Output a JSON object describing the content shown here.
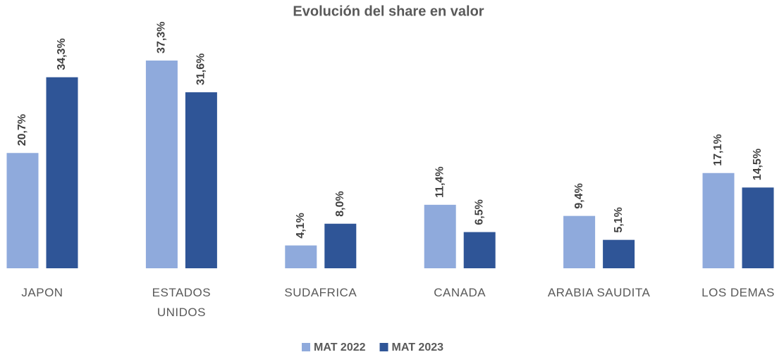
{
  "chart_data": {
    "type": "bar",
    "title": "Evolución del share en valor",
    "categories": [
      "JAPON",
      "ESTADOS\nUNIDOS",
      "SUDAFRICA",
      "CANADA",
      "ARABIA SAUDITA",
      "LOS DEMAS"
    ],
    "series": [
      {
        "name": "MAT 2022",
        "color": "#8faadc",
        "values": [
          20.7,
          37.3,
          4.1,
          11.4,
          9.4,
          17.1
        ],
        "value_labels": [
          "20,7%",
          "37,3%",
          "4,1%",
          "11,4%",
          "9,4%",
          "17,1%"
        ]
      },
      {
        "name": "MAT 2023",
        "color": "#2f5597",
        "values": [
          34.3,
          31.6,
          8.0,
          6.5,
          5.1,
          14.5
        ],
        "value_labels": [
          "34,3%",
          "31,6%",
          "8,0%",
          "6,5%",
          "5,1%",
          "14,5%"
        ]
      }
    ],
    "legend": "bottom"
  }
}
